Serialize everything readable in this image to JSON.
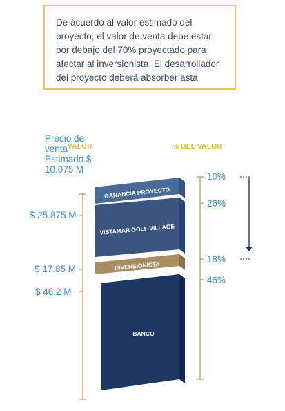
{
  "note": {
    "text": "De acuerdo al valor estimado del proyecto, el valor de venta debe estar por debajo del 70% proyectado para afectar al inversionista. El desarrollador del proyecto deberá absorber asta"
  },
  "side_label": "Precio de venta Estimado $ 10.075 M",
  "headers": {
    "value": "VALOR",
    "percent": "% DEL VALOR"
  },
  "values": [
    "$ 25.875 M",
    "$ 17.85 M",
    "$ 46.2 M"
  ],
  "percents": [
    "10%",
    "26%",
    "18%",
    "46%"
  ],
  "segments": [
    {
      "label": "GANANCIA PROYECTO",
      "color": "#4a6b95"
    },
    {
      "label": "VISTAMAR GOLF VILLAGE",
      "color": "#3b5580"
    },
    {
      "label": "INVERSIONISTA",
      "color": "#a88c62"
    },
    {
      "label": "BANCO",
      "color": "#1f3763"
    }
  ],
  "colors": {
    "accent_gold": "#e0b54a",
    "bracket": "#b8935a",
    "text_blue": "#3b8fd0",
    "arrow": "#1f3763"
  }
}
